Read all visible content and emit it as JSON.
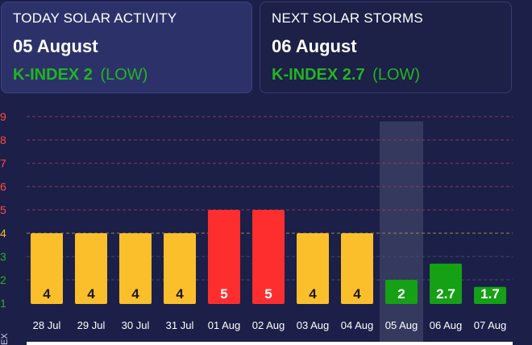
{
  "today_card": {
    "label": "TODAY SOLAR ACTIVITY",
    "date": "05 August",
    "kindex_label": "K-INDEX 2",
    "kindex_level": "(LOW)",
    "kindex_color": "#22b422"
  },
  "next_card": {
    "label": "NEXT SOLAR STORMS",
    "date": "06 August",
    "kindex_label": "K-INDEX 2.7",
    "kindex_level": "(LOW)",
    "kindex_color": "#22b422"
  },
  "chart_data": {
    "type": "bar",
    "ylabel": "K-INDEX",
    "ylabel_visible": "EX",
    "categories": [
      "28 Jul",
      "29 Jul",
      "30 Jul",
      "31 Jul",
      "01 Aug",
      "02 Aug",
      "03 Aug",
      "04 Aug",
      "05 Aug",
      "06 Aug",
      "07 Aug"
    ],
    "values": [
      4,
      4,
      4,
      4,
      5,
      5,
      4,
      4,
      2,
      2.7,
      1.7
    ],
    "labels": [
      "4",
      "4",
      "4",
      "4",
      "5",
      "5",
      "4",
      "4",
      "2",
      "2.7",
      "1.7"
    ],
    "highlighted_category": "05 Aug",
    "ylim": [
      1,
      9
    ],
    "yticks": [
      "1",
      "2",
      "3",
      "4",
      "5",
      "6",
      "7",
      "8",
      "9"
    ],
    "ytick_colors": [
      "#22b422",
      "#22b422",
      "#22b422",
      "#f5b92e",
      "#ff4a4a",
      "#ff4a4a",
      "#ff4a4a",
      "#ff4a4a",
      "#ff4a4a"
    ],
    "colors": {
      "low": "#15a015",
      "moderate": "#fbbf2c",
      "storm": "#ff2e2e",
      "text_dark": "#1a1a1a",
      "text_light": "#ffffff",
      "grid_red": "#8e3a55",
      "grid_yellow": "#a0844a",
      "grid_green": "#3b4a77",
      "highlight": "#3a3e63"
    }
  }
}
